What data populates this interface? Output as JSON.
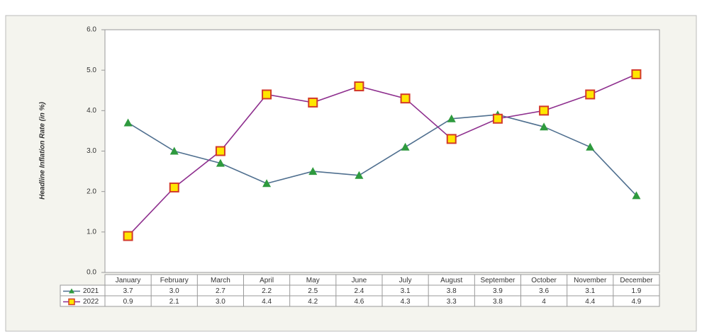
{
  "chart_data": {
    "type": "line",
    "y_label": "Headline Inflation Rate (in %)",
    "categories": [
      "January",
      "February",
      "March",
      "April",
      "May",
      "June",
      "July",
      "August",
      "September",
      "October",
      "November",
      "December"
    ],
    "series": [
      {
        "name": "2021",
        "color": "#4f6f8f",
        "marker": "triangle",
        "marker_color": "#2e9a3e",
        "values": [
          3.7,
          3.0,
          2.7,
          2.2,
          2.5,
          2.4,
          3.1,
          3.8,
          3.9,
          3.6,
          3.1,
          1.9
        ],
        "value_labels": [
          "3.7",
          "3.0",
          "2.7",
          "2.2",
          "2.5",
          "2.4",
          "3.1",
          "3.8",
          "3.9",
          "3.6",
          "3.1",
          "1.9"
        ]
      },
      {
        "name": "2022",
        "color": "#8e2f8e",
        "marker": "square",
        "marker_color": "#ffe600",
        "marker_edge": "#d23a2a",
        "values": [
          0.9,
          2.1,
          3.0,
          4.4,
          4.2,
          4.6,
          4.3,
          3.3,
          3.8,
          4,
          4.4,
          4.9
        ],
        "value_labels": [
          "0.9",
          "2.1",
          "3.0",
          "4.4",
          "4.2",
          "4.6",
          "4.3",
          "3.3",
          "3.8",
          "4",
          "4.4",
          "4.9"
        ]
      }
    ],
    "ylim": [
      0,
      6
    ],
    "yticks": [
      {
        "value": 0,
        "label": "0.0"
      },
      {
        "value": 1,
        "label": "1.0"
      },
      {
        "value": 2,
        "label": "2.0"
      },
      {
        "value": 3,
        "label": "3.0"
      },
      {
        "value": 4,
        "label": "4.0"
      },
      {
        "value": 5,
        "label": "5.0"
      },
      {
        "value": 6,
        "label": "6.0"
      }
    ],
    "grid": false
  }
}
